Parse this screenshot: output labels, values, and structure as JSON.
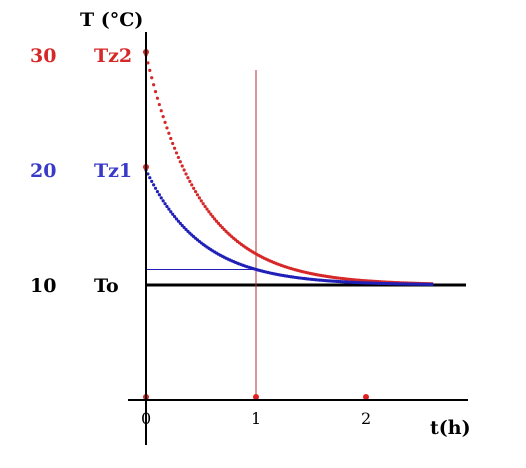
{
  "chart_data": {
    "type": "line",
    "xlabel": "t(h)",
    "ylabel": "T (°C)",
    "x_ticks": [
      "0",
      "1",
      "2"
    ],
    "xlim": [
      -0.15,
      2.9
    ],
    "ylim": [
      0,
      36
    ],
    "y_labels": [
      {
        "value": 30,
        "text": "30",
        "name": "Tz2",
        "color": "#d62828"
      },
      {
        "value": 20,
        "text": "20",
        "name": "Tz1",
        "color": "#3a3ac8"
      },
      {
        "value": 10,
        "text": "10",
        "name": "To",
        "color": "#000000"
      }
    ],
    "ambient": 10,
    "series": [
      {
        "start": 30,
        "tau": 0.5,
        "t_end": 2.6,
        "color": "#d62828"
      },
      {
        "start": 20,
        "tau": 0.5,
        "t_end": 2.6,
        "color": "#2020b8"
      }
    ],
    "markers": [
      {
        "x": 1,
        "color": "#b03030"
      }
    ],
    "guide_y": 11.35
  }
}
